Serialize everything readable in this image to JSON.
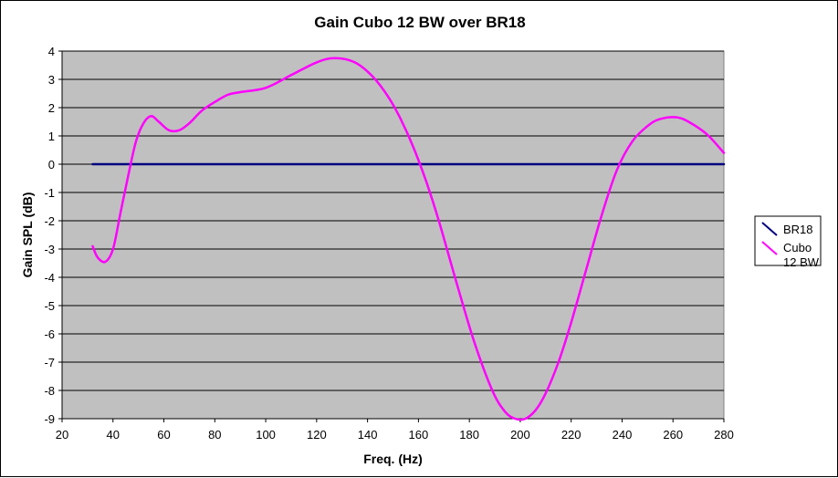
{
  "chart_data": {
    "type": "line",
    "title": "Gain Cubo 12 BW over BR18",
    "xlabel": "Freq. (Hz)",
    "ylabel": "Gain SPL (dB)",
    "xlim": [
      20,
      280
    ],
    "ylim": [
      -9,
      4
    ],
    "x_ticks": [
      20,
      40,
      60,
      80,
      100,
      120,
      140,
      160,
      180,
      200,
      220,
      240,
      260,
      280
    ],
    "y_ticks": [
      4,
      3,
      2,
      1,
      0,
      -1,
      -2,
      -3,
      -4,
      -5,
      -6,
      -7,
      -8,
      -9
    ],
    "grid": "horizontal",
    "plot_background": "#c0c0c0",
    "legend_position": "right",
    "series": [
      {
        "name": "BR18",
        "color": "#000080",
        "x": [
          32,
          280
        ],
        "y": [
          0,
          0
        ]
      },
      {
        "name_lines": [
          "Cubo",
          "12 BW"
        ],
        "color": "#ff00ff",
        "x": [
          32,
          34,
          37,
          40,
          43,
          46,
          49,
          52,
          55,
          58,
          62,
          66,
          70,
          75,
          80,
          85,
          90,
          100,
          110,
          120,
          127,
          135,
          142,
          148,
          153,
          158,
          163,
          168,
          175,
          182,
          189,
          194,
          198,
          202,
          206,
          210,
          215,
          220,
          226,
          232,
          238,
          244,
          250,
          255,
          262,
          268,
          274,
          280
        ],
        "y": [
          -2.9,
          -3.3,
          -3.45,
          -3.0,
          -1.7,
          -0.4,
          0.8,
          1.45,
          1.7,
          1.5,
          1.2,
          1.2,
          1.45,
          1.9,
          2.2,
          2.45,
          2.55,
          2.7,
          3.15,
          3.6,
          3.75,
          3.6,
          3.1,
          2.4,
          1.6,
          0.6,
          -0.6,
          -2.0,
          -4.2,
          -6.3,
          -8.0,
          -8.75,
          -9.0,
          -9.0,
          -8.7,
          -8.1,
          -7.0,
          -5.6,
          -3.7,
          -1.8,
          -0.2,
          0.8,
          1.35,
          1.6,
          1.65,
          1.4,
          1.0,
          0.4
        ]
      }
    ]
  }
}
